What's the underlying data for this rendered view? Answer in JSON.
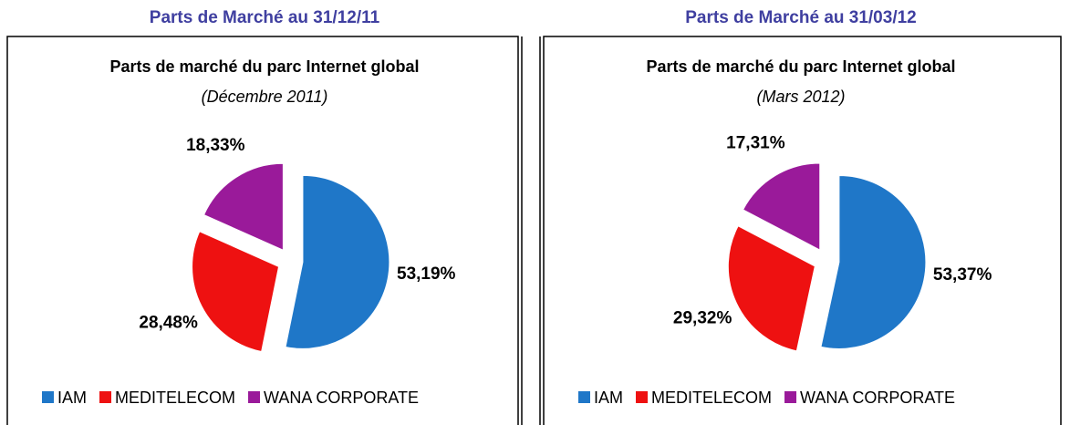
{
  "chart_data": [
    {
      "type": "pie",
      "heading": "Parts de Marché au 31/12/11",
      "title": "Parts de marché du parc Internet global",
      "subtitle": "(Décembre 2011)",
      "categories": [
        "IAM",
        "MEDITELECOM",
        "WANA CORPORATE"
      ],
      "values": [
        53.19,
        28.48,
        18.33
      ],
      "value_labels": [
        "53,19%",
        "28,48%",
        "18,33%"
      ],
      "colors": [
        "#1f77c8",
        "#ee1111",
        "#9a1a9a"
      ]
    },
    {
      "type": "pie",
      "heading": "Parts de Marché au 31/03/12",
      "title": "Parts de marché du parc Internet global",
      "subtitle": "(Mars 2012)",
      "categories": [
        "IAM",
        "MEDITELECOM",
        "WANA CORPORATE"
      ],
      "values": [
        53.37,
        29.32,
        17.31
      ],
      "value_labels": [
        "53,37%",
        "29,32%",
        "17,31%"
      ],
      "colors": [
        "#1f77c8",
        "#ee1111",
        "#9a1a9a"
      ]
    }
  ]
}
